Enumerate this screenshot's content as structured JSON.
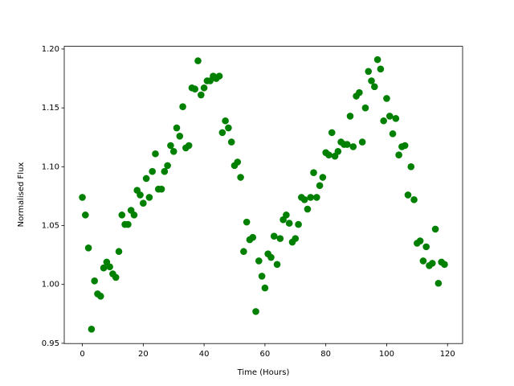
{
  "chart_data": {
    "type": "scatter",
    "xlabel": "Time (Hours)",
    "ylabel": "Normalised Flux",
    "color": "#008000",
    "x": [
      0,
      1,
      2,
      3,
      4,
      5,
      6,
      7,
      8,
      9,
      10,
      11,
      12,
      13,
      14,
      15,
      16,
      17,
      18,
      19,
      20,
      21,
      22,
      23,
      24,
      25,
      26,
      27,
      28,
      29,
      30,
      31,
      32,
      33,
      34,
      35,
      36,
      37,
      38,
      39,
      40,
      41,
      42,
      43,
      44,
      45,
      46,
      47,
      48,
      49,
      50,
      51,
      52,
      53,
      54,
      55,
      56,
      57,
      58,
      59,
      60,
      61,
      62,
      63,
      64,
      65,
      66,
      67,
      68,
      69,
      70,
      71,
      72,
      73,
      74,
      75,
      76,
      77,
      78,
      79,
      80,
      81,
      82,
      83,
      84,
      85,
      86,
      87,
      88,
      89,
      90,
      91,
      92,
      93,
      94,
      95,
      96,
      97,
      98,
      99,
      100,
      101,
      102,
      103,
      104,
      105,
      106,
      107,
      108,
      109,
      110,
      111,
      112,
      113,
      114,
      115,
      116,
      117,
      118,
      119
    ],
    "values": [
      1.074,
      1.059,
      1.031,
      0.962,
      1.003,
      0.992,
      0.99,
      1.014,
      1.019,
      1.015,
      1.009,
      1.006,
      1.028,
      1.059,
      1.051,
      1.051,
      1.063,
      1.059,
      1.08,
      1.076,
      1.069,
      1.09,
      1.074,
      1.096,
      1.111,
      1.081,
      1.081,
      1.096,
      1.101,
      1.118,
      1.113,
      1.133,
      1.126,
      1.151,
      1.116,
      1.118,
      1.167,
      1.166,
      1.19,
      1.161,
      1.167,
      1.173,
      1.173,
      1.177,
      1.175,
      1.177,
      1.129,
      1.139,
      1.133,
      1.121,
      1.101,
      1.104,
      1.091,
      1.028,
      1.053,
      1.038,
      1.04,
      0.977,
      1.02,
      1.007,
      0.997,
      1.026,
      1.023,
      1.041,
      1.017,
      1.039,
      1.055,
      1.059,
      1.052,
      1.036,
      1.039,
      1.051,
      1.074,
      1.072,
      1.064,
      1.074,
      1.095,
      1.074,
      1.084,
      1.091,
      1.112,
      1.11,
      1.129,
      1.109,
      1.113,
      1.121,
      1.119,
      1.119,
      1.143,
      1.117,
      1.16,
      1.163,
      1.121,
      1.15,
      1.181,
      1.173,
      1.168,
      1.191,
      1.183,
      1.139,
      1.158,
      1.143,
      1.128,
      1.141,
      1.11,
      1.117,
      1.118,
      1.076,
      1.1,
      1.072,
      1.035,
      1.037,
      1.02,
      1.032,
      1.016,
      1.018,
      1.047,
      1.001,
      1.019,
      1.017
    ],
    "xlim": [
      -5.95,
      124.95
    ],
    "xticks": [
      0,
      20,
      40,
      60,
      80,
      100,
      120
    ],
    "ylim": [
      0.9498,
      1.2023
    ],
    "yticks": [
      0.95,
      {
        "value": 1,
        "label": "1.00"
      },
      1.05,
      {
        "value": 1.1,
        "label": "1.10"
      },
      1.15,
      {
        "value": 1.2,
        "label": "1.20"
      }
    ]
  }
}
